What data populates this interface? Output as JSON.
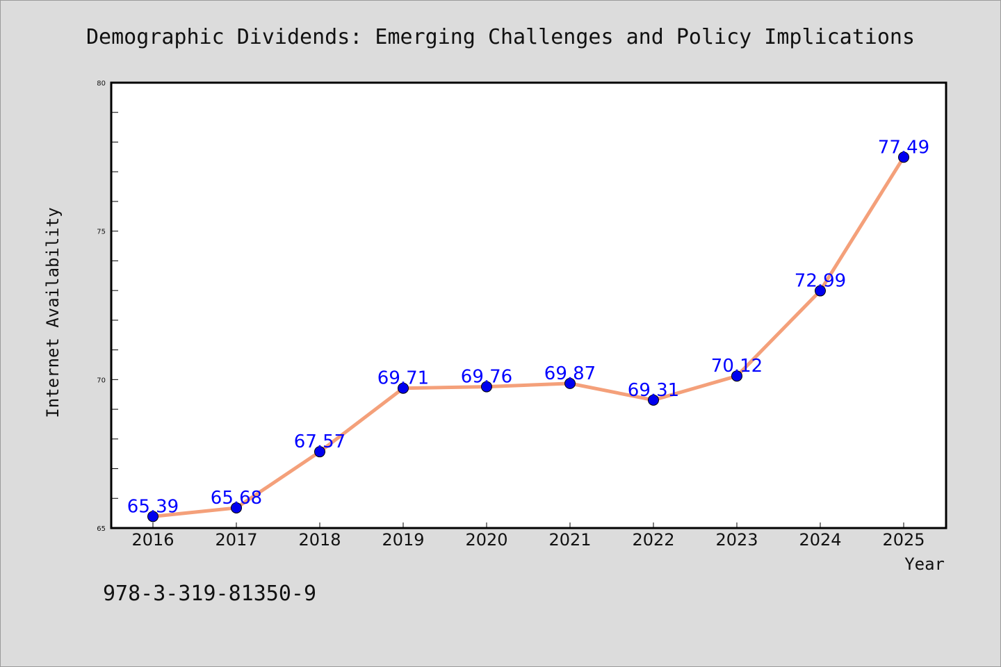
{
  "chart_data": {
    "type": "line",
    "title": "Demographic Dividends: Emerging Challenges and Policy Implications",
    "xlabel": "Year",
    "ylabel": "Internet Availability",
    "x": [
      "2016",
      "2017",
      "2018",
      "2019",
      "2020",
      "2021",
      "2022",
      "2023",
      "2024",
      "2025"
    ],
    "series": [
      {
        "values": [
          65.39,
          65.68,
          67.57,
          69.71,
          69.76,
          69.87,
          69.31,
          70.12,
          72.99,
          77.49
        ],
        "data_labels": [
          "65.39",
          "65.68",
          "67.57",
          "69.71",
          "69.76",
          "69.87",
          "69.31",
          "70.12",
          "72.99",
          "77.49"
        ]
      }
    ],
    "ylim": [
      65,
      80
    ],
    "yticks": [
      "65",
      "70",
      "75",
      "80"
    ],
    "grid": false,
    "legend": "none",
    "colors": {
      "line": "#f4a07a",
      "marker": "#0000ee",
      "data_label": "#0000ff",
      "background": "#dcdcdc",
      "plot_background": "#ffffff"
    }
  },
  "footer": {
    "isbn": "978-3-319-81350-9"
  }
}
